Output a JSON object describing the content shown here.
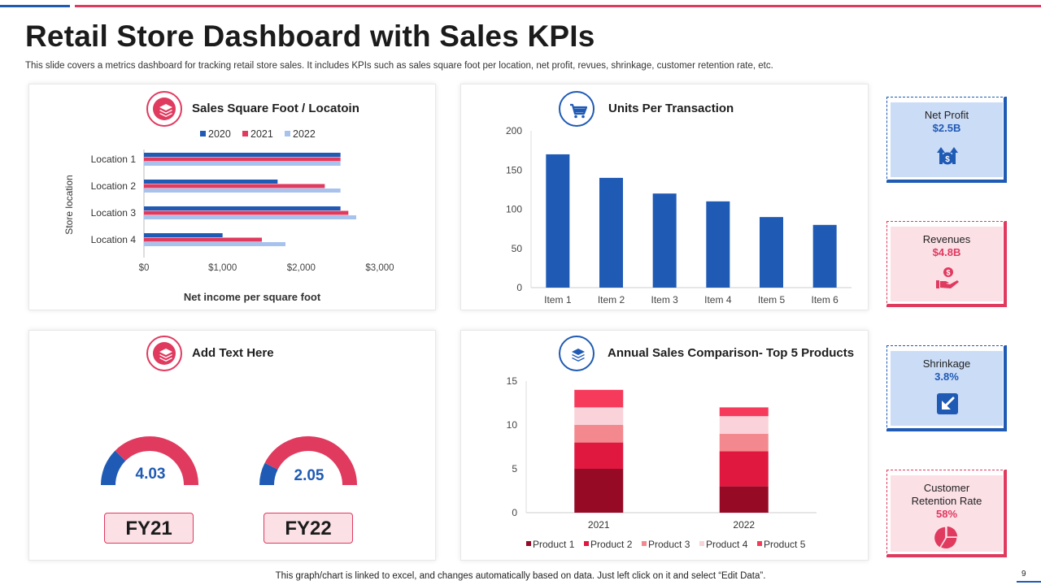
{
  "header": {
    "title": "Retail Store Dashboard with Sales KPIs",
    "subtitle": "This slide covers a metrics dashboard for tracking retail store sales. It includes KPIs such as sales square foot per location, net profit, revues, shrinkage, customer retention rate, etc."
  },
  "footer": {
    "note": "This graph/chart is linked to excel,  and changes automatically based on data. Just left click on it and select “Edit Data”.",
    "page_number": "9"
  },
  "colors": {
    "blue": "#1f5ab4",
    "red": "#e03a5f",
    "light_blue": "#a8c2ee",
    "kpi_blue_bg": "#cbdcf7",
    "kpi_red_bg": "#fbe0e6"
  },
  "panels": {
    "sales_sqft": {
      "title": "Sales Square Foot / Locatoin",
      "icon": "layers-icon"
    },
    "units": {
      "title": "Units Per Transaction",
      "icon": "shopping-cart-icon"
    },
    "add_text": {
      "title": "Add Text Here",
      "icon": "layers-icon"
    },
    "annual": {
      "title": "Annual Sales Comparison- Top 5 Products",
      "icon": "layers-icon"
    }
  },
  "gauges": [
    {
      "value_label": "4.03",
      "fy_label": "FY21",
      "blue_share": 0.25
    },
    {
      "value_label": "2.05",
      "fy_label": "FY22",
      "blue_share": 0.15
    }
  ],
  "kpis": [
    {
      "label": "Net Profit",
      "value": "$2.5B",
      "theme": "blue",
      "icon": "money-bag-up-arrows-icon"
    },
    {
      "label": "Revenues",
      "value": "$4.8B",
      "theme": "red",
      "icon": "hand-coin-icon"
    },
    {
      "label": "Shrinkage",
      "value": "3.8%",
      "theme": "blue",
      "icon": "arrow-down-left-icon"
    },
    {
      "label": "Customer Retention Rate",
      "value": "58%",
      "theme": "red",
      "icon": "pie-chart-icon"
    }
  ],
  "chart_data": [
    {
      "type": "bar",
      "orientation": "horizontal",
      "title": "Sales Square Foot / Locatoin",
      "categories": [
        "Location 1",
        "Location 2",
        "Location 3",
        "Location 4"
      ],
      "series": [
        {
          "name": "2020",
          "values": [
            2500,
            1700,
            2500,
            1000
          ],
          "color": "#1f5ab4"
        },
        {
          "name": "2021",
          "values": [
            2500,
            2300,
            2600,
            1500
          ],
          "color": "#e03a5f"
        },
        {
          "name": "2022",
          "values": [
            2500,
            2500,
            2700,
            1800
          ],
          "color": "#a8c2ee"
        }
      ],
      "xlabel": "Net income per square foot",
      "ylabel": "Store location",
      "xlim": [
        0,
        3000
      ],
      "xticks": [
        "$0",
        "$1,000",
        "$2,000",
        "$3,000"
      ],
      "legend": "top"
    },
    {
      "type": "bar",
      "title": "Units Per Transaction",
      "categories": [
        "Item 1",
        "Item 2",
        "Item 3",
        "Item 4",
        "Item 5",
        "Item 6"
      ],
      "values": [
        170,
        140,
        120,
        110,
        90,
        80
      ],
      "color": "#1f5ab4",
      "ylim": [
        0,
        200
      ],
      "yticks": [
        "0",
        "50",
        "100",
        "150",
        "200"
      ]
    },
    {
      "type": "bar",
      "stacked": true,
      "title": "Annual Sales Comparison- Top 5 Products",
      "categories": [
        "2021",
        "2022"
      ],
      "series": [
        {
          "name": "Product 1",
          "values": [
            5,
            3
          ],
          "color": "#960a26"
        },
        {
          "name": "Product 2",
          "values": [
            3,
            4
          ],
          "color": "#e0173f"
        },
        {
          "name": "Product 3",
          "values": [
            2,
            2
          ],
          "color": "#f4888f"
        },
        {
          "name": "Product 4",
          "values": [
            2,
            2
          ],
          "color": "#fad2d9"
        },
        {
          "name": "Product 5",
          "values": [
            2,
            1
          ],
          "color": "#f53a5c"
        }
      ],
      "ylim": [
        0,
        15
      ],
      "yticks": [
        "0",
        "5",
        "10",
        "15"
      ],
      "legend": "bottom"
    }
  ]
}
